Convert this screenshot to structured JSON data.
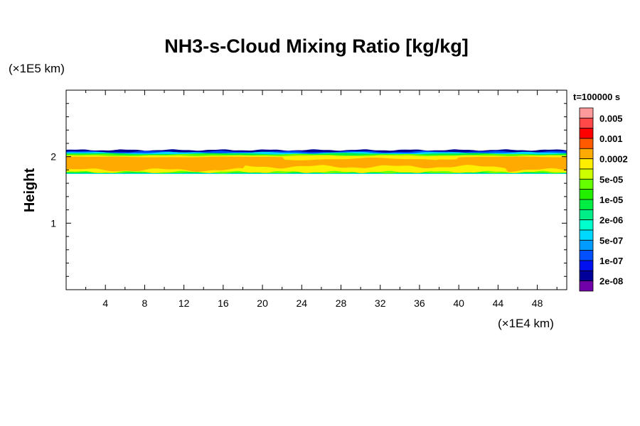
{
  "chart_data": {
    "type": "heatmap",
    "title": "NH3-s-Cloud Mixing Ratio [kg/kg]",
    "xlabel": "(×1E4 km)",
    "ylabel": "Height",
    "yunit": "(×1E5 km)",
    "xlim": [
      0,
      51
    ],
    "ylim": [
      0,
      3
    ],
    "xticks": [
      4,
      8,
      12,
      16,
      20,
      24,
      28,
      32,
      36,
      40,
      44,
      48
    ],
    "yticks": [
      1,
      2
    ],
    "time_label": "t=100000 s",
    "colorbar": {
      "labels": [
        "0.005",
        "0.001",
        "0.0002",
        "5e-05",
        "1e-05",
        "2e-06",
        "5e-07",
        "1e-07",
        "2e-08"
      ],
      "colors": [
        "#ff9a9a",
        "#ff4848",
        "#ff0000",
        "#ff5a00",
        "#ffaa00",
        "#ffee00",
        "#ccff00",
        "#66ff00",
        "#22ee00",
        "#00ee44",
        "#00ee88",
        "#00ffcc",
        "#00d8ff",
        "#009cff",
        "#0050ff",
        "#0010ee",
        "#000099",
        "#7000a8"
      ]
    },
    "cloud_layer": {
      "core_value": "0.0002",
      "core_bottom": 1.78,
      "core_top": 2.0,
      "cloud_top": 2.1,
      "cloud_bottom": 1.74
    }
  }
}
